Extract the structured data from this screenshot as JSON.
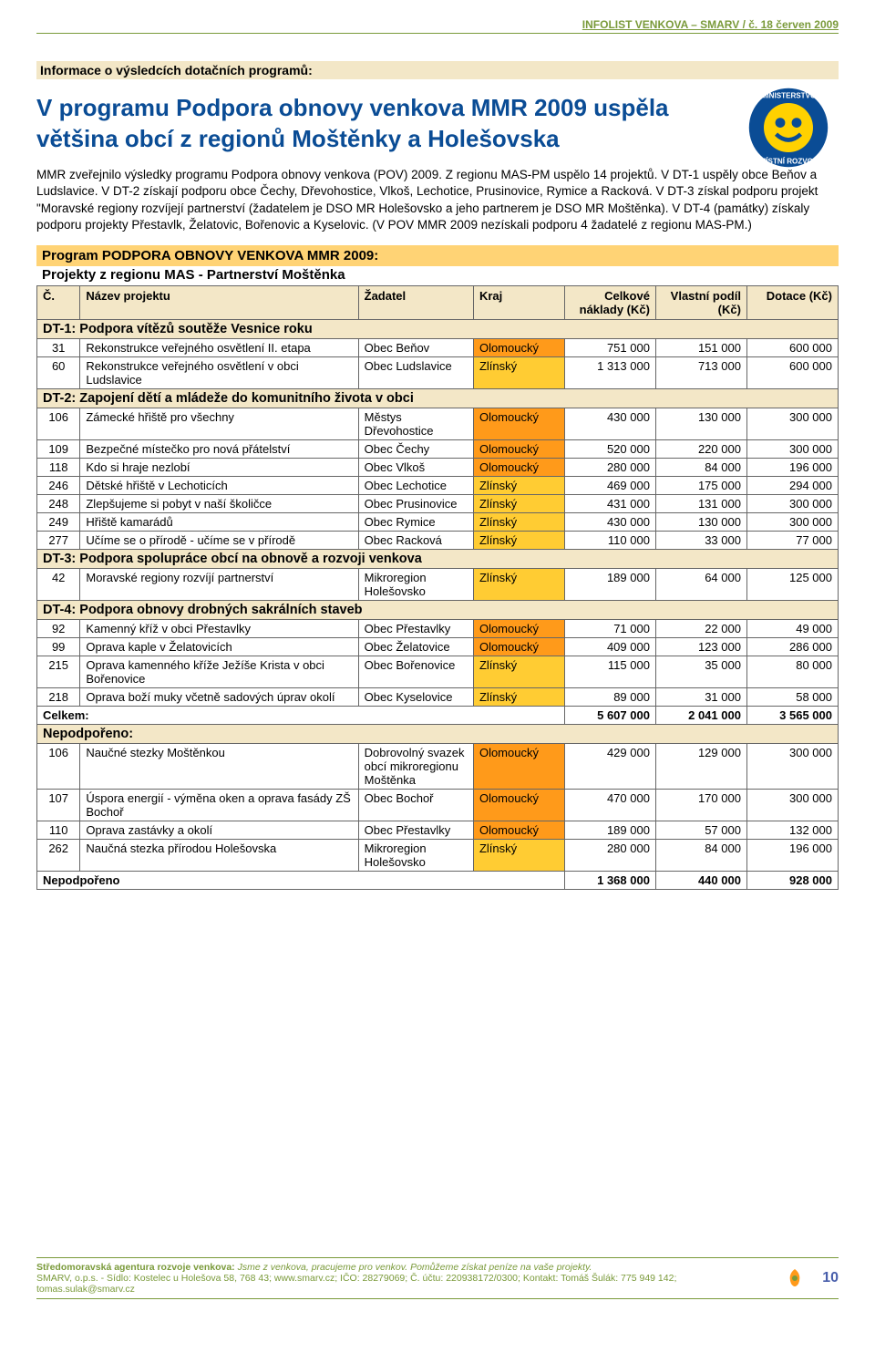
{
  "header": {
    "text": "INFOLIST VENKOVA – SMARV / č. 18 červen 2009"
  },
  "section_banner": "Informace o výsledcích dotačních programů:",
  "main_title": "V programu Podpora obnovy venkova MMR 2009 uspěla většina obcí z regionů Moštěnky a Holešovska",
  "body_text": "MMR zveřejnilo výsledky programu Podpora obnovy venkova (POV) 2009. Z regionu MAS-PM uspělo 14 projektů. V DT-1 uspěly obce Beňov a Ludslavice. V DT-2 získají podporu obce Čechy, Dřevohostice, Vlkoš, Lechotice, Prusinovice, Rymice a Racková. V DT-3 získal podporu projekt \"Moravské regiony rozvíjejí partnerství (žadatelem je DSO MR Holešovsko a jeho partnerem je DSO MR Moštěnka). V DT-4 (památky) získaly podporu projekty Přestavlk, Želatovic, Bořenovic a Kyselovic. (V POV MMR 2009 nezískali podporu 4 žadatelé z regionu MAS-PM.)",
  "program": {
    "title": "Program PODPORA OBNOVY VENKOVA MMR 2009:",
    "subtitle": "Projekty z regionu MAS - Partnerství Moštěnka"
  },
  "columns": {
    "c": "Č.",
    "nazev": "Název projektu",
    "zadatel": "Žadatel",
    "kraj": "Kraj",
    "naklady": "Celkové náklady (Kč)",
    "podil": "Vlastní podíl (Kč)",
    "dotace": "Dotace (Kč)"
  },
  "kraj": {
    "olom": "Olomoucký",
    "zlin": "Zlínský"
  },
  "sections": {
    "dt1": "DT-1: Podpora vítězů soutěže Vesnice roku",
    "dt2": "DT-2: Zapojení dětí a mládeže do komunitního života v obci",
    "dt3": "DT-3: Podpora spolupráce obcí na obnově a rozvoji venkova",
    "dt4": "DT-4: Podpora obnovy drobných sakrálních staveb",
    "celkem": "Celkem:",
    "nepodp_hdr": "Nepodpořeno:",
    "nepodp_sum": "Nepodpořeno"
  },
  "rows": {
    "r31": {
      "c": "31",
      "n": "Rekonstrukce veřejného osvětlení II. etapa",
      "z": "Obec Beňov",
      "k": "olom",
      "a": "751 000",
      "b": "151 000",
      "d": "600 000"
    },
    "r60": {
      "c": "60",
      "n": "Rekonstrukce veřejného osvětlení v obci Ludslavice",
      "z": "Obec Ludslavice",
      "k": "zlin",
      "a": "1 313 000",
      "b": "713 000",
      "d": "600 000"
    },
    "r106": {
      "c": "106",
      "n": "Zámecké hřiště pro všechny",
      "z": "Městys Dřevohostice",
      "k": "olom",
      "a": "430 000",
      "b": "130 000",
      "d": "300 000"
    },
    "r109": {
      "c": "109",
      "n": "Bezpečné místečko pro nová přátelství",
      "z": "Obec Čechy",
      "k": "olom",
      "a": "520 000",
      "b": "220 000",
      "d": "300 000"
    },
    "r118": {
      "c": "118",
      "n": "Kdo si hraje nezlobí",
      "z": "Obec Vlkoš",
      "k": "olom",
      "a": "280 000",
      "b": "84 000",
      "d": "196 000"
    },
    "r246": {
      "c": "246",
      "n": "Dětské hřiště v Lechoticích",
      "z": "Obec Lechotice",
      "k": "zlin",
      "a": "469 000",
      "b": "175 000",
      "d": "294 000"
    },
    "r248": {
      "c": "248",
      "n": "Zlepšujeme si pobyt v naší školičce",
      "z": "Obec Prusinovice",
      "k": "zlin",
      "a": "431 000",
      "b": "131 000",
      "d": "300 000"
    },
    "r249": {
      "c": "249",
      "n": "Hřiště kamarádů",
      "z": "Obec Rymice",
      "k": "zlin",
      "a": "430 000",
      "b": "130 000",
      "d": "300 000"
    },
    "r277": {
      "c": "277",
      "n": "Učíme se o přírodě - učíme se v přírodě",
      "z": "Obec Racková",
      "k": "zlin",
      "a": "110 000",
      "b": "33 000",
      "d": "77 000"
    },
    "r42": {
      "c": "42",
      "n": "Moravské regiony rozvíjí partnerství",
      "z": "Mikroregion Holešovsko",
      "k": "zlin",
      "a": "189 000",
      "b": "64 000",
      "d": "125 000"
    },
    "r92": {
      "c": "92",
      "n": "Kamenný kříž v obci Přestavlky",
      "z": "Obec Přestavlky",
      "k": "olom",
      "a": "71 000",
      "b": "22 000",
      "d": "49 000"
    },
    "r99": {
      "c": "99",
      "n": "Oprava kaple v Želatovicích",
      "z": "Obec Želatovice",
      "k": "olom",
      "a": "409 000",
      "b": "123 000",
      "d": "286 000"
    },
    "r215": {
      "c": "215",
      "n": "Oprava kamenného kříže Ježíše Krista v obci Bořenovice",
      "z": "Obec Bořenovice",
      "k": "zlin",
      "a": "115 000",
      "b": "35 000",
      "d": "80 000"
    },
    "r218": {
      "c": "218",
      "n": "Oprava boží muky včetně sadových úprav okolí",
      "z": "Obec Kyselovice",
      "k": "zlin",
      "a": "89 000",
      "b": "31 000",
      "d": "58 000"
    },
    "n106": {
      "c": "106",
      "n": "Naučné stezky Moštěnkou",
      "z": "Dobrovolný svazek obcí mikroregionu Moštěnka",
      "k": "olom",
      "a": "429 000",
      "b": "129 000",
      "d": "300 000"
    },
    "n107": {
      "c": "107",
      "n": "Úspora energií - výměna oken a oprava fasády ZŠ Bochoř",
      "z": "Obec Bochoř",
      "k": "olom",
      "a": "470 000",
      "b": "170 000",
      "d": "300 000"
    },
    "n110": {
      "c": "110",
      "n": "Oprava zastávky a okolí",
      "z": "Obec Přestavlky",
      "k": "olom",
      "a": "189 000",
      "b": "57 000",
      "d": "132 000"
    },
    "n262": {
      "c": "262",
      "n": "Naučná stezka přírodou Holešovska",
      "z": "Mikroregion Holešovsko",
      "k": "zlin",
      "a": "280 000",
      "b": "84 000",
      "d": "196 000"
    }
  },
  "totals": {
    "celkem": {
      "a": "5 607 000",
      "b": "2 041 000",
      "d": "3 565 000"
    },
    "nepodp": {
      "a": "1 368 000",
      "b": "440 000",
      "d": "928 000"
    }
  },
  "footer": {
    "l1a": "Středomoravská agentura rozvoje venkova: ",
    "l1b": "Jsme z venkova, pracujeme pro venkov. Pomůžeme získat peníze na vaše projekty.",
    "l2": "SMARV, o.p.s. - Sídlo: Kostelec u Holešova 58, 768 43; www.smarv.cz; IČO: 28279069; Č. účtu: 220938172/0300; Kontakt: Tomáš Šulák: 775 949 142; tomas.sulak@smarv.cz",
    "page": "10"
  },
  "colors": {
    "olom_bg": "#ff9a1a",
    "zlin_bg": "#ffcc33",
    "banner_bg": "#f3e7c7",
    "program_bg": "#ffd375",
    "title_color": "#0a4c95",
    "green": "#7a9a3a"
  }
}
